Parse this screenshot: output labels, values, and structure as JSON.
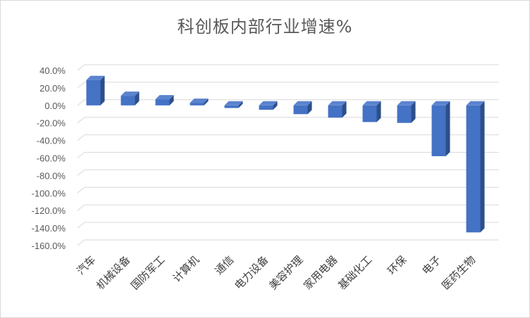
{
  "chart_data": {
    "type": "bar",
    "title": "科创板内部行业增速%",
    "categories": [
      "汽车",
      "机械设备",
      "国防军工",
      "计算机",
      "通信",
      "电力设备",
      "美容护理",
      "家用电器",
      "基础化工",
      "环保",
      "电子",
      "医药生物"
    ],
    "values": [
      29.0,
      11.0,
      7.0,
      3.0,
      -3.0,
      -5.0,
      -10.0,
      -14.0,
      -19.0,
      -20.0,
      -58.0,
      -145.0
    ],
    "y_ticks": [
      "40.0%",
      "20.0%",
      "0.0%",
      "-20.0%",
      "-40.0%",
      "-60.0%",
      "-80.0%",
      "-100.0%",
      "-120.0%",
      "-140.0%",
      "-160.0%"
    ],
    "ylim": [
      -160,
      40
    ],
    "grid": true,
    "bar_style": "3d",
    "colors": {
      "bar_front": "#4472c4",
      "bar_side": "#2c4f8a",
      "bar_top": "#5b84cf",
      "grid": "#d9d9d9",
      "floor": "#d9d9d9"
    }
  }
}
